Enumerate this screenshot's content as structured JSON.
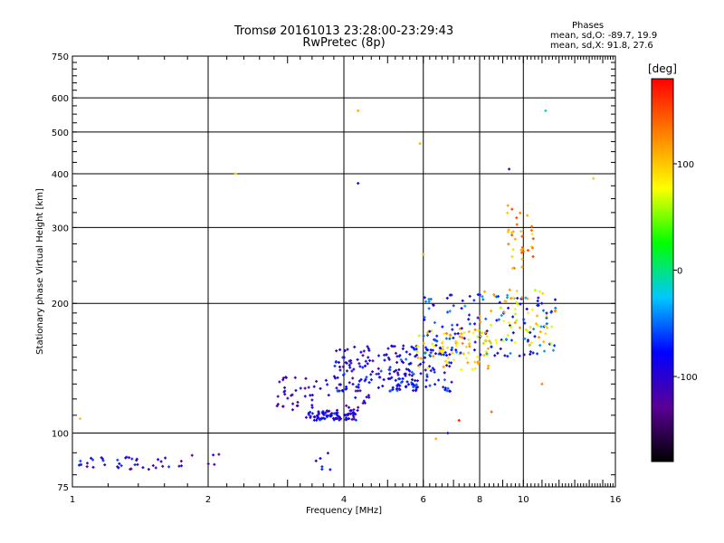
{
  "header": {
    "title_line1": "Tromsø 20161013 23:28:00-23:29:43",
    "title_line2": "RwPretec (8p)"
  },
  "stats": {
    "heading": "Phases",
    "o_line": "mean, sd,O: -89.7, 19.9",
    "x_line": "mean, sd,X:  91.8, 27.6"
  },
  "colorbar": {
    "unit_label": "[deg]",
    "tick_labels": [
      "100",
      "0",
      "-100"
    ],
    "range": [
      -180,
      180
    ],
    "colors": [
      "#000000",
      "#5a0096",
      "#0000ff",
      "#00c8ff",
      "#00ff00",
      "#ffff00",
      "#ff8000",
      "#ff0000"
    ]
  },
  "chart_data": {
    "type": "scatter",
    "title": "Tromsø 20161013 23:28:00-23:29:43",
    "subtitle": "RwPretec (8p)",
    "xlabel": "Frequency [MHz]",
    "ylabel": "Stationary phase Virtual Height [km]",
    "x_scale": "log",
    "y_scale": "log",
    "xlim": [
      1,
      16
    ],
    "ylim": [
      75,
      750
    ],
    "x_ticks": [
      1,
      2,
      4,
      6,
      8,
      10,
      16
    ],
    "x_tick_labels": [
      "1",
      "2",
      "4",
      "6",
      "8",
      "10",
      "16"
    ],
    "y_ticks": [
      75,
      100,
      200,
      300,
      400,
      500,
      600,
      750
    ],
    "y_tick_labels": [
      "75",
      "100",
      "200",
      "300",
      "400",
      "500",
      "600",
      "750"
    ],
    "grid": true,
    "clusters": [
      {
        "name": "low-band O echoes",
        "x_range": [
          1.02,
          1.75
        ],
        "y_range": [
          82,
          88
        ],
        "phase": -95,
        "count": 40
      },
      {
        "name": "isolated low echoes",
        "x_range": [
          1.8,
          2.2
        ],
        "y_range": [
          84,
          92
        ],
        "phase": -100,
        "count": 5
      },
      {
        "name": "E/F transition",
        "x_range": [
          3.4,
          3.9
        ],
        "y_range": [
          80,
          92
        ],
        "phase": -90,
        "count": 6
      },
      {
        "name": "F-layer base",
        "x_range": [
          3.3,
          4.3
        ],
        "y_range": [
          107,
          113
        ],
        "phase": -95,
        "count": 70
      },
      {
        "name": "F-layer trace 1",
        "x_range": [
          2.8,
          4.6
        ],
        "y_range": [
          110,
          135
        ],
        "phase": -105,
        "count": 70
      },
      {
        "name": "F-layer trace 2",
        "x_range": [
          3.8,
          5.8
        ],
        "y_range": [
          125,
          160
        ],
        "phase": -90,
        "count": 120
      },
      {
        "name": "F-layer mid",
        "x_range": [
          5.0,
          7.0
        ],
        "y_range": [
          125,
          160
        ],
        "phase": -80,
        "count": 90
      },
      {
        "name": "X-mode mid",
        "x_range": [
          5.8,
          8.5
        ],
        "y_range": [
          140,
          175
        ],
        "phase": 95,
        "count": 80
      },
      {
        "name": "upper F trace",
        "x_range": [
          6.0,
          11.8
        ],
        "y_range": [
          150,
          210
        ],
        "phase": -70,
        "count": 140
      },
      {
        "name": "X-mode upper",
        "x_range": [
          8.0,
          11.8
        ],
        "y_range": [
          160,
          215
        ],
        "phase": 90,
        "count": 60
      },
      {
        "name": "cusp near foF2",
        "x_range": [
          9.2,
          10.7
        ],
        "y_range": [
          240,
          340
        ],
        "phase": 120,
        "count": 35
      }
    ],
    "outliers": [
      {
        "x": 4.3,
        "y": 560,
        "phase": 110
      },
      {
        "x": 5.9,
        "y": 470,
        "phase": 110
      },
      {
        "x": 4.3,
        "y": 380,
        "phase": -110
      },
      {
        "x": 2.3,
        "y": 400,
        "phase": 100
      },
      {
        "x": 9.3,
        "y": 410,
        "phase": -110
      },
      {
        "x": 11.2,
        "y": 560,
        "phase": -20
      },
      {
        "x": 14.3,
        "y": 390,
        "phase": 100
      },
      {
        "x": 1.04,
        "y": 108,
        "phase": 100
      },
      {
        "x": 6.0,
        "y": 260,
        "phase": 110
      },
      {
        "x": 6.4,
        "y": 97,
        "phase": 110
      },
      {
        "x": 6.8,
        "y": 100,
        "phase": -110
      },
      {
        "x": 7.2,
        "y": 107,
        "phase": 170
      },
      {
        "x": 8.5,
        "y": 112,
        "phase": 140
      },
      {
        "x": 11.0,
        "y": 130,
        "phase": 130
      }
    ]
  }
}
